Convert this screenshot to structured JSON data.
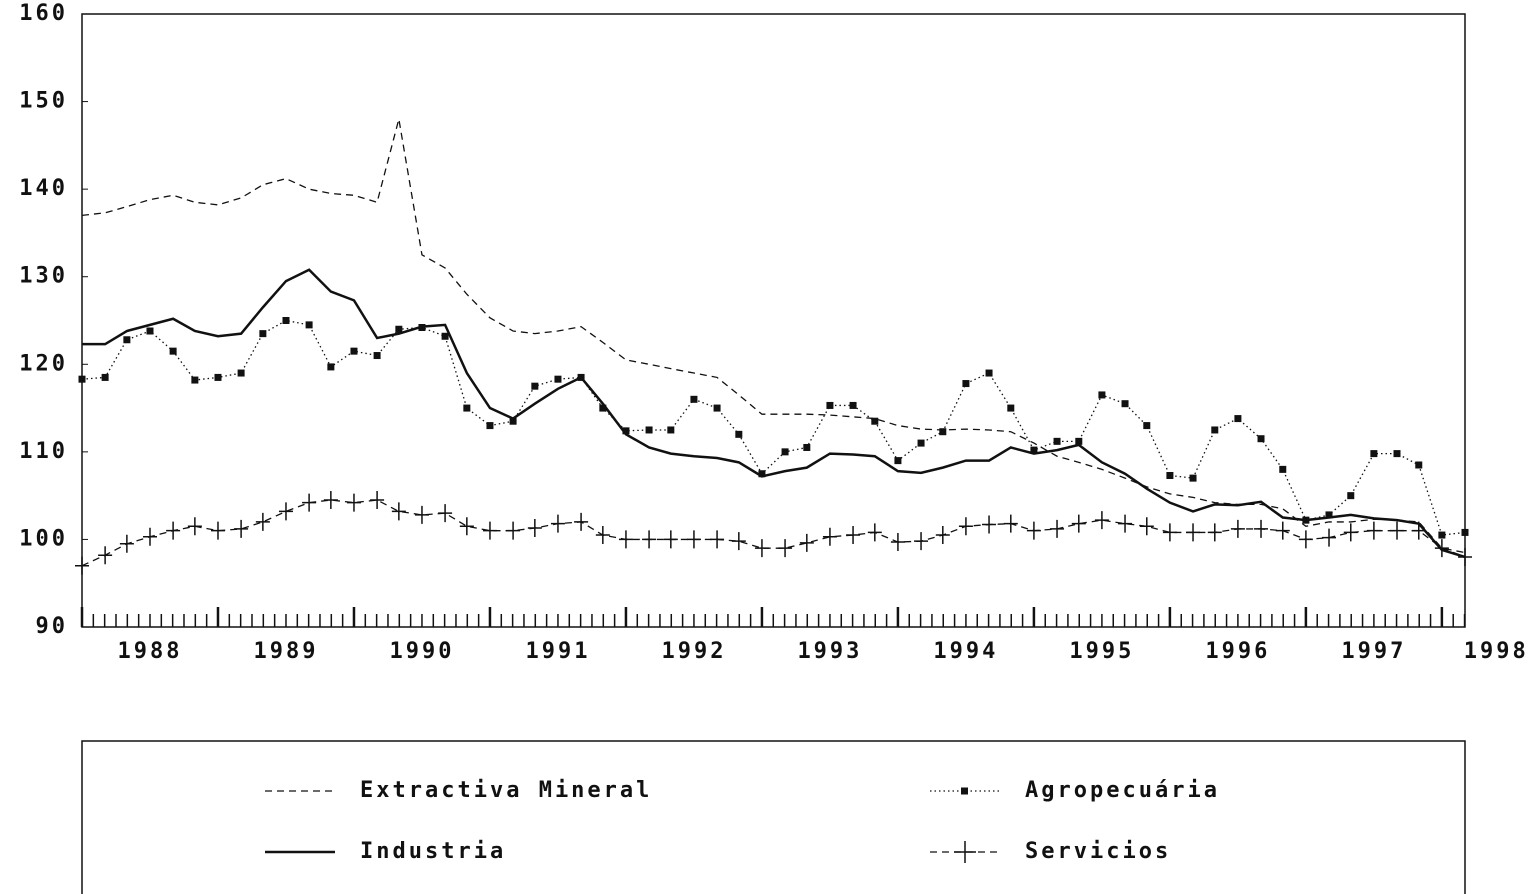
{
  "chart_data": {
    "type": "line",
    "x": [
      1988,
      1988.17,
      1988.33,
      1988.5,
      1988.67,
      1988.83,
      1989,
      1989.17,
      1989.33,
      1989.5,
      1989.67,
      1989.83,
      1990,
      1990.17,
      1990.33,
      1990.5,
      1990.67,
      1990.83,
      1991,
      1991.17,
      1991.33,
      1991.5,
      1991.67,
      1991.83,
      1992,
      1992.17,
      1992.33,
      1992.5,
      1992.67,
      1992.83,
      1993,
      1993.17,
      1993.33,
      1993.5,
      1993.67,
      1993.83,
      1994,
      1994.17,
      1994.33,
      1994.5,
      1994.67,
      1994.83,
      1995,
      1995.17,
      1995.33,
      1995.5,
      1995.67,
      1995.83,
      1996,
      1996.17,
      1996.33,
      1996.5,
      1996.67,
      1996.83,
      1997,
      1997.17,
      1997.33,
      1997.5,
      1997.67,
      1997.83,
      1998,
      1998.17
    ],
    "series": [
      {
        "name": "Extractiva Mineral",
        "color": "#111111",
        "line_style": "dashed",
        "marker": "none",
        "values": [
          137,
          137.3,
          138,
          138.8,
          139.3,
          138.5,
          138.2,
          139,
          140.5,
          141.2,
          140,
          139.5,
          139.3,
          138.5,
          148,
          132.5,
          131,
          128,
          125.3,
          123.8,
          123.5,
          123.8,
          124.3,
          122.5,
          120.5,
          120,
          119.5,
          119,
          118.5,
          116.5,
          114.3,
          114.3,
          114.3,
          114.2,
          114,
          113.8,
          113,
          112.6,
          112.5,
          112.6,
          112.5,
          112.3,
          111,
          109.5,
          108.8,
          108,
          107,
          106,
          105.2,
          104.8,
          104.2,
          104,
          104,
          103.5,
          101.5,
          102,
          102,
          102.3,
          102.2,
          102,
          99,
          98.5
        ]
      },
      {
        "name": "Agropecuária",
        "color": "#111111",
        "line_style": "dotted",
        "marker": "square",
        "values": [
          118.3,
          118.5,
          122.8,
          123.8,
          121.5,
          118.2,
          118.5,
          119,
          123.5,
          125,
          124.5,
          119.7,
          121.5,
          121,
          124,
          124.2,
          123.2,
          115,
          113,
          113.5,
          117.5,
          118.3,
          118.5,
          115,
          112.4,
          112.5,
          112.5,
          116,
          115,
          112,
          107.5,
          110,
          110.5,
          115.3,
          115.3,
          113.5,
          109,
          111,
          112.3,
          117.8,
          119,
          115,
          110.2,
          111.2,
          111.2,
          116.5,
          115.5,
          113,
          107.3,
          107,
          112.5,
          113.8,
          111.5,
          108,
          102.2,
          102.8,
          105,
          109.8,
          109.8,
          108.5,
          100.5,
          100.8
        ]
      },
      {
        "name": "Industria",
        "color": "#111111",
        "line_style": "solid",
        "marker": "none",
        "values": [
          122.3,
          122.3,
          123.8,
          124.5,
          125.2,
          123.8,
          123.2,
          123.5,
          126.5,
          129.5,
          130.8,
          128.3,
          127.3,
          123,
          123.5,
          124.3,
          124.5,
          119,
          115,
          113.8,
          115.5,
          117.2,
          118.5,
          115.5,
          112,
          110.5,
          109.8,
          109.5,
          109.3,
          108.8,
          107.2,
          107.8,
          108.2,
          109.8,
          109.7,
          109.5,
          107.8,
          107.6,
          108.2,
          109,
          109,
          110.5,
          109.8,
          110.2,
          110.8,
          108.8,
          107.5,
          105.8,
          104.2,
          103.2,
          104,
          103.9,
          104.3,
          102.5,
          102.2,
          102.5,
          102.8,
          102.4,
          102.2,
          101.8,
          98.8,
          98
        ]
      },
      {
        "name": "Servicios",
        "color": "#111111",
        "line_style": "dashed",
        "marker": "plus",
        "values": [
          97,
          98.2,
          99.5,
          100.3,
          101,
          101.5,
          101,
          101.2,
          102,
          103.2,
          104.2,
          104.5,
          104.2,
          104.5,
          103.2,
          102.8,
          103,
          101.5,
          101,
          101,
          101.3,
          101.8,
          102,
          100.5,
          100,
          100,
          100,
          100,
          100,
          99.8,
          99,
          99,
          99.6,
          100.3,
          100.5,
          100.8,
          99.7,
          99.8,
          100.5,
          101.5,
          101.7,
          101.8,
          101,
          101.2,
          101.8,
          102.2,
          101.8,
          101.5,
          100.8,
          100.8,
          100.8,
          101.2,
          101.2,
          101,
          100,
          100.2,
          100.8,
          101,
          101,
          101,
          99,
          98
        ]
      }
    ],
    "xlim": [
      1988,
      1998.17
    ],
    "xticks": [
      {
        "value": 1988.5,
        "label": "1988"
      },
      {
        "value": 1989.5,
        "label": "1989"
      },
      {
        "value": 1990.5,
        "label": "1990"
      },
      {
        "value": 1991.5,
        "label": "1991"
      },
      {
        "value": 1992.5,
        "label": "1992"
      },
      {
        "value": 1993.5,
        "label": "1993"
      },
      {
        "value": 1994.5,
        "label": "1994"
      },
      {
        "value": 1995.5,
        "label": "1995"
      },
      {
        "value": 1996.5,
        "label": "1996"
      },
      {
        "value": 1997.5,
        "label": "1997"
      },
      {
        "value": 1998.4,
        "label": "1998"
      }
    ],
    "ylim": [
      90,
      160
    ],
    "yticks": [
      90,
      100,
      110,
      120,
      130,
      140,
      150,
      160
    ],
    "grid": false,
    "legend": "bottom"
  }
}
